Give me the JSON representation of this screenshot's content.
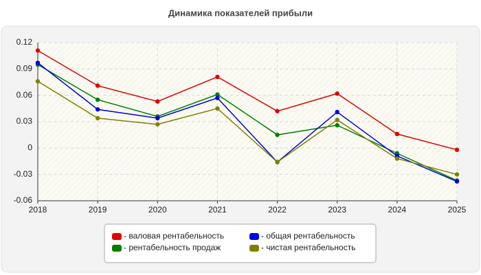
{
  "chart_data": {
    "type": "line",
    "title": "Динамика показателей прибыли",
    "categories": [
      "2018",
      "2019",
      "2020",
      "2021",
      "2022",
      "2023",
      "2024",
      "2025"
    ],
    "series": [
      {
        "name": "- валовая рентабельность",
        "color": "#e00000",
        "values": [
          0.111,
          0.071,
          0.053,
          0.081,
          0.042,
          0.062,
          0.016,
          -0.002
        ]
      },
      {
        "name": "- рентабельность продаж",
        "color": "#008000",
        "values": [
          0.095,
          0.055,
          0.036,
          0.061,
          0.015,
          0.026,
          -0.006,
          -0.037
        ]
      },
      {
        "name": "- общая рентабельность",
        "color": "#0000e0",
        "values": [
          0.097,
          0.044,
          0.034,
          0.057,
          -0.016,
          0.041,
          -0.009,
          -0.038
        ]
      },
      {
        "name": "- чистая рентабельность",
        "color": "#808000",
        "values": [
          0.076,
          0.034,
          0.027,
          0.045,
          -0.016,
          0.032,
          -0.012,
          -0.03
        ]
      }
    ],
    "ylim": [
      -0.06,
      0.12
    ],
    "yticks": [
      0.12,
      0.09,
      0.06,
      0.03,
      0,
      -0.03,
      -0.06
    ],
    "grid": true
  }
}
